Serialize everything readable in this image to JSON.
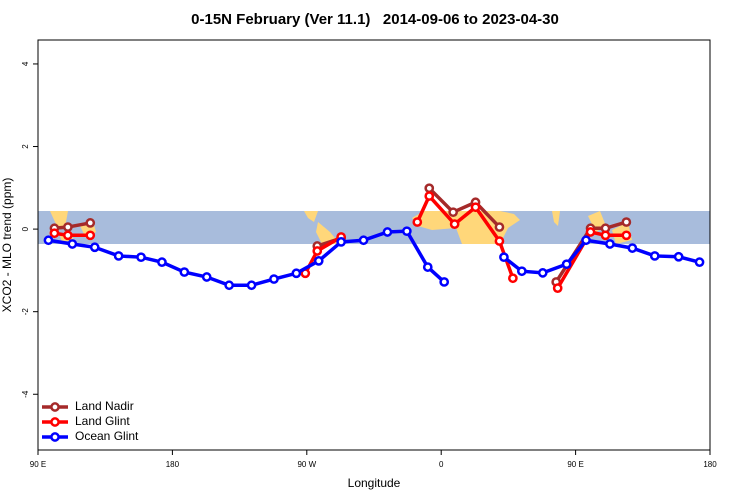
{
  "chart_data": {
    "type": "line",
    "title": "0-15N February (Ver 11.1)   2014-09-06 to 2023-04-30",
    "x_label": "Longitude",
    "y_label": "XCO2 - MLO trend (ppm)",
    "xlim": [
      90,
      540
    ],
    "ylim": [
      -5.35,
      4.58
    ],
    "xticks": [
      {
        "value": 90,
        "label": "90 E"
      },
      180,
      {
        "value": 270,
        "label": "90 W"
      },
      {
        "value": 360,
        "label": "0"
      },
      {
        "value": 450,
        "label": "90 E"
      },
      {
        "value": 540,
        "label": "180"
      }
    ],
    "yticks": [
      4,
      2,
      0,
      -2,
      -4
    ],
    "legend": "bottom-left",
    "series": [
      {
        "name": "Land Nadir",
        "color": "#a52a2a",
        "x": [
          101,
          110,
          125,
          200,
          277,
          293,
          320,
          352,
          368,
          383,
          399,
          420,
          437,
          460,
          470,
          484
        ],
        "values": [
          0.02,
          0.05,
          0.15,
          null,
          -0.41,
          -0.22,
          null,
          0.99,
          0.41,
          0.65,
          0.05,
          null,
          -1.28,
          0.02,
          0.02,
          0.17
        ]
      },
      {
        "name": "Land Glint",
        "color": "#ff0000",
        "x": [
          101,
          110,
          125,
          200,
          269,
          277,
          293,
          320,
          344,
          352,
          369,
          383,
          399,
          408,
          420,
          438,
          460,
          470,
          484
        ],
        "values": [
          -0.1,
          -0.15,
          -0.15,
          null,
          -1.07,
          -0.53,
          -0.19,
          null,
          0.17,
          0.8,
          0.12,
          0.53,
          -0.29,
          -1.19,
          null,
          -1.43,
          -0.07,
          -0.15,
          -0.15
        ]
      },
      {
        "name": "Ocean Glint",
        "color": "#0000ff",
        "x": [
          97,
          113,
          128,
          144,
          159,
          173,
          188,
          203,
          218,
          233,
          248,
          263,
          278,
          293,
          308,
          324,
          337,
          351,
          362,
          382,
          402,
          414,
          428,
          444,
          457,
          473,
          488,
          503,
          519,
          533
        ],
        "values": [
          -0.27,
          -0.36,
          -0.44,
          -0.65,
          -0.68,
          -0.8,
          -1.04,
          -1.16,
          -1.36,
          -1.36,
          -1.21,
          -1.07,
          -0.77,
          -0.31,
          -0.27,
          -0.07,
          -0.05,
          -0.92,
          -1.28,
          null,
          -0.68,
          -1.02,
          -1.06,
          -0.85,
          -0.27,
          -0.36,
          -0.46,
          -0.65,
          -0.67,
          -0.8
        ]
      }
    ]
  }
}
